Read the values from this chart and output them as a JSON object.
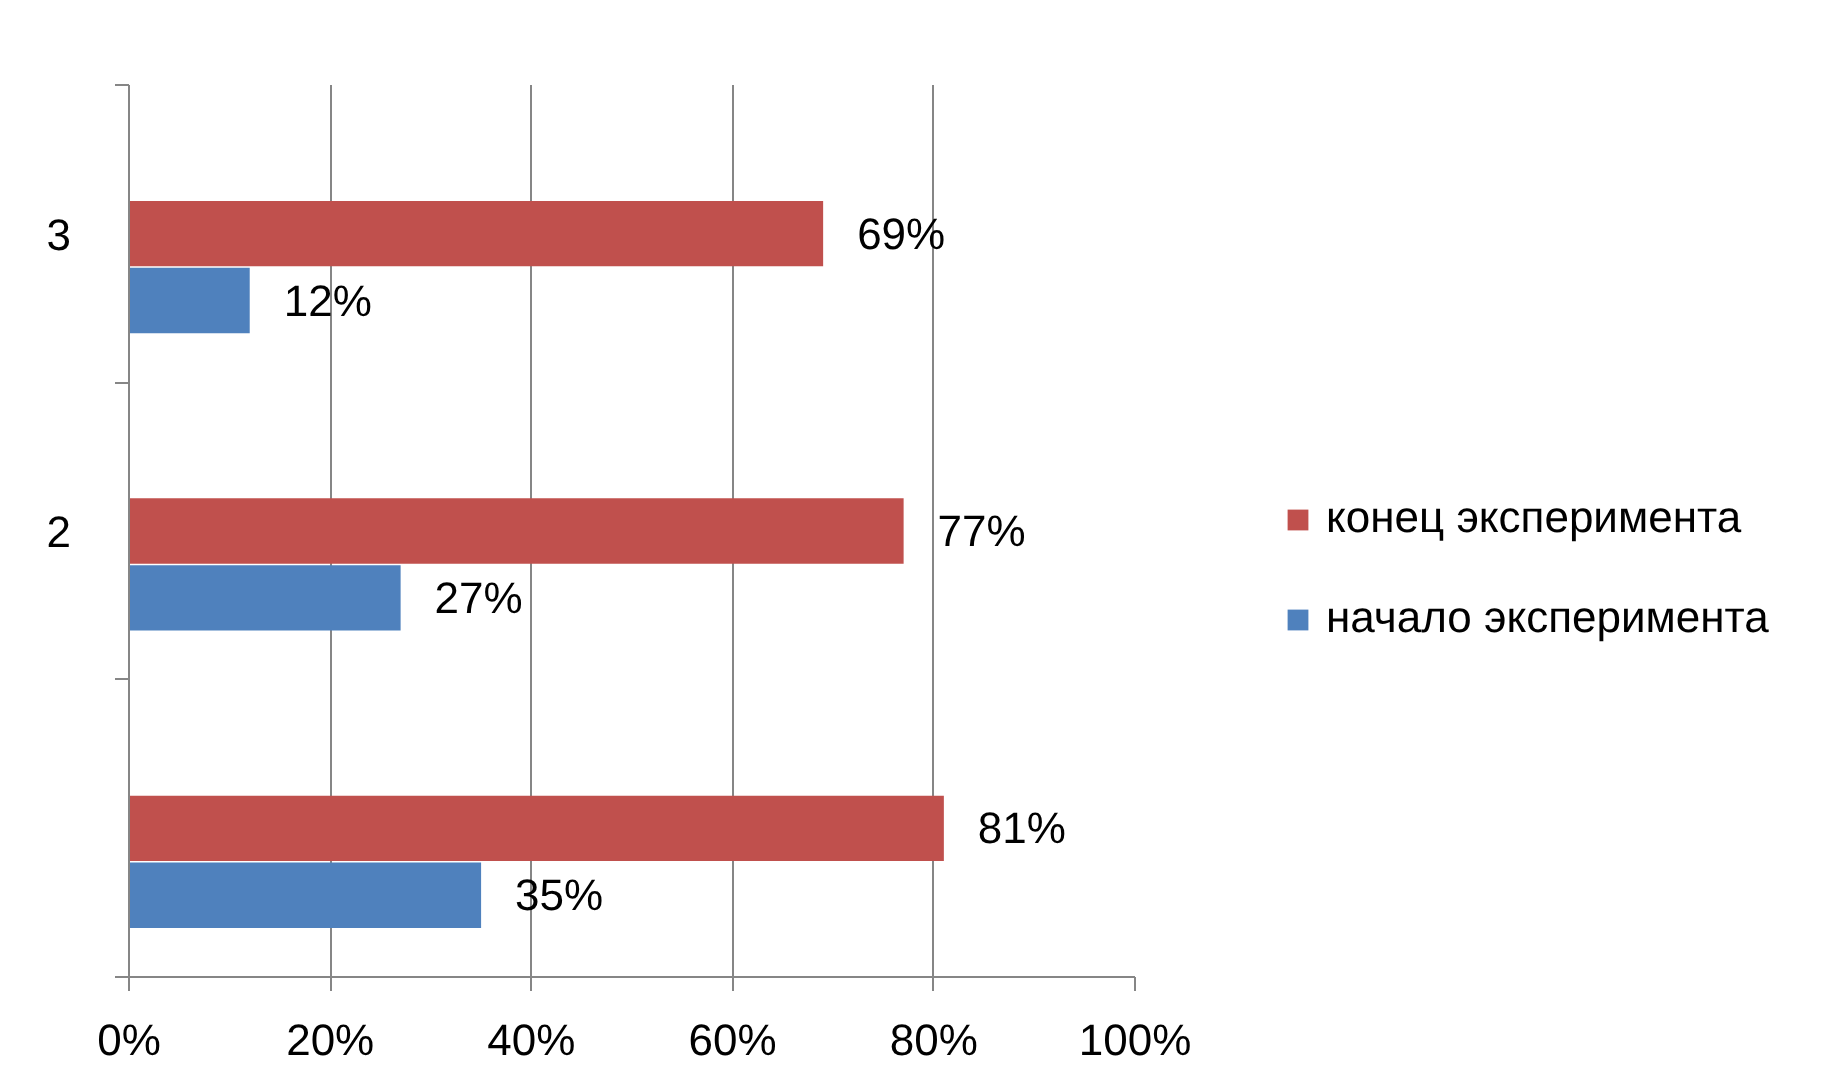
{
  "chart_data": {
    "type": "bar",
    "orientation": "horizontal",
    "categories": [
      "3",
      "2",
      null
    ],
    "series": [
      {
        "name": "конец эксперимента",
        "color": "#c0504d",
        "values": [
          69,
          77,
          81
        ],
        "value_labels": [
          "69%",
          "77%",
          "81%"
        ]
      },
      {
        "name": "начало эксперимента",
        "color": "#4f81bd",
        "values": [
          12,
          27,
          35
        ],
        "value_labels": [
          "12%",
          "27%",
          "35%"
        ]
      }
    ],
    "xlim": [
      0,
      100
    ],
    "xticks": [
      {
        "value": 0,
        "label": "0%"
      },
      {
        "value": 20,
        "label": "20%"
      },
      {
        "value": 40,
        "label": "40%"
      },
      {
        "value": 60,
        "label": "60%"
      },
      {
        "value": 80,
        "label": "80%"
      },
      {
        "value": 100,
        "label": "100%"
      }
    ],
    "grid": "x",
    "legend": "right"
  }
}
